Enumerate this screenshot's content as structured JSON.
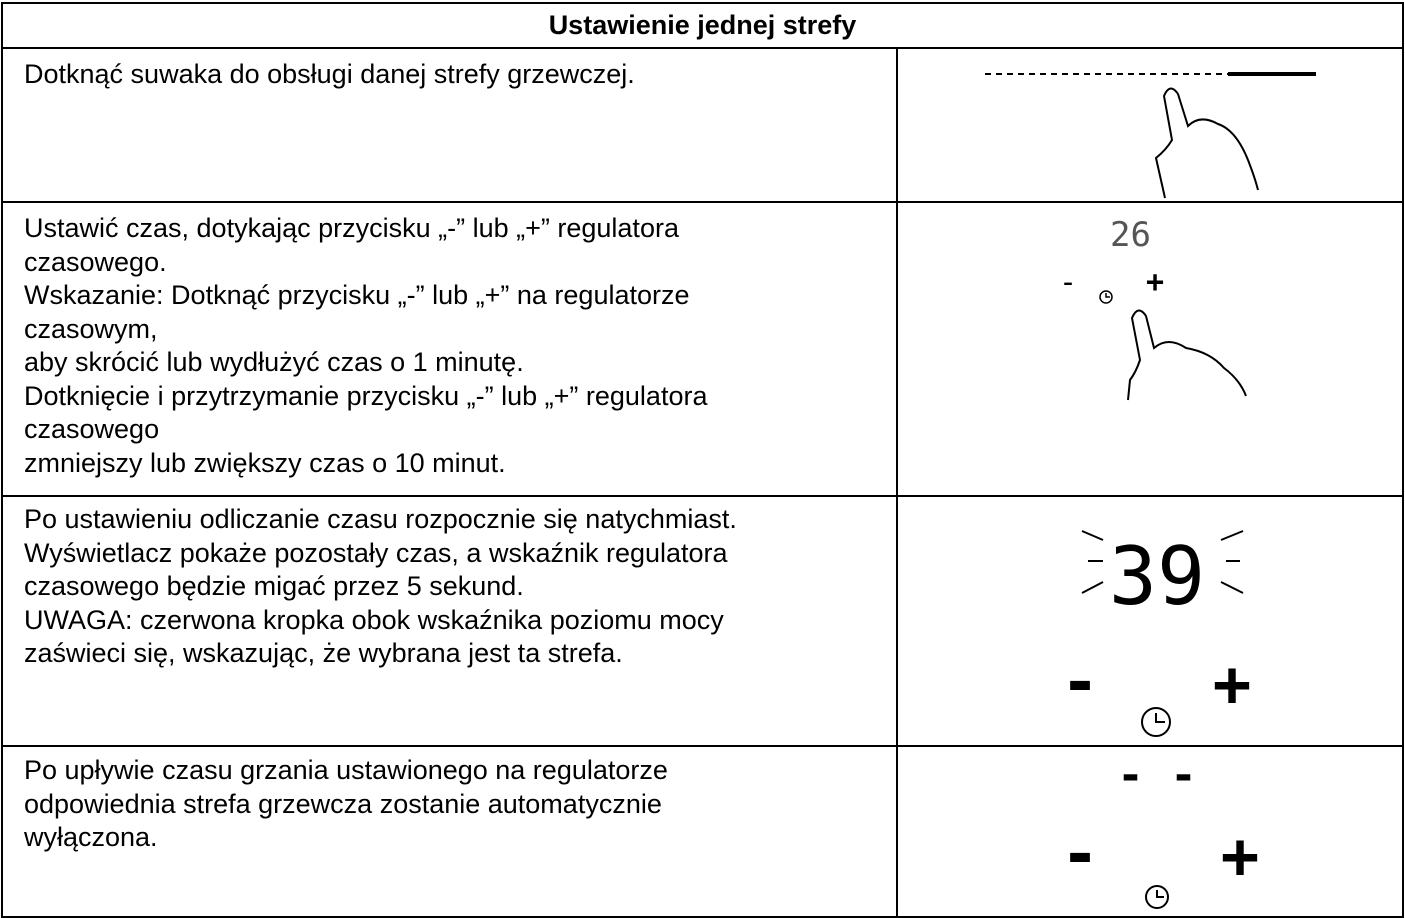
{
  "table": {
    "title": "Ustawienie jednej strefy",
    "rows": [
      {
        "lines": [
          "Dotknąć suwaka do obsługi danej strefy grzewczej."
        ]
      },
      {
        "lines": [
          "Ustawić czas, dotykając przycisku „-” lub „+” regulatora",
          "czasowego.",
          "Wskazanie: Dotknąć przycisku „-” lub „+” na regulatorze",
          "czasowym,",
          "aby skrócić lub wydłużyć czas o 1 minutę.",
          "Dotknięcie i przytrzymanie przycisku „-” lub „+” regulatora",
          "czasowego",
          "zmniejszy lub zwiększy czas o 10 minut."
        ],
        "display": "26",
        "minus": "-",
        "plus": "+"
      },
      {
        "lines": [
          "Po ustawieniu odliczanie czasu rozpocznie się natychmiast.",
          "Wyświetlacz pokaże pozostały czas, a wskaźnik regulatora",
          "czasowego będzie migać przez 5 sekund.",
          "UWAGA: czerwona kropka obok wskaźnika poziomu mocy",
          "zaświeci się, wskazując, że wybrana jest ta strefa."
        ],
        "display": "39",
        "minus": "-",
        "plus": "+"
      },
      {
        "lines": [
          "Po upływie czasu grzania ustawionego na regulatorze",
          "odpowiednia strefa grzewcza zostanie automatycznie",
          "wyłączona."
        ],
        "display": "- -",
        "minus": "-",
        "plus": "+"
      }
    ]
  }
}
